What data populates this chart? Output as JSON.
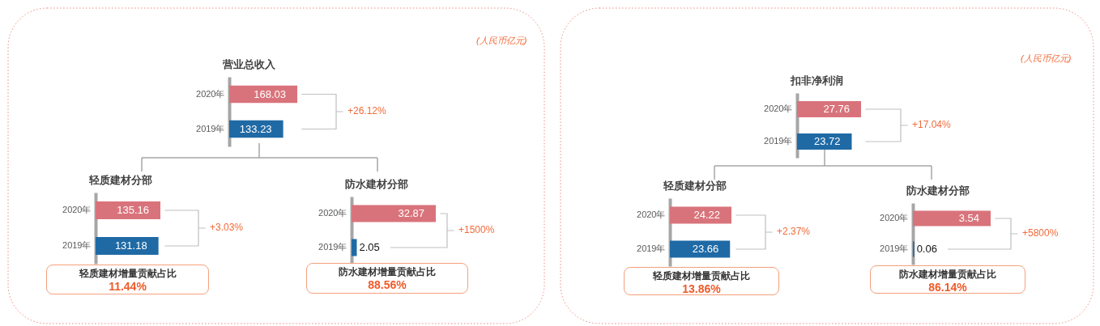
{
  "chart_data": [
    {
      "type": "bar",
      "orientation": "horizontal",
      "title": "营业总收入",
      "categories": [
        "2020年",
        "2019年"
      ],
      "values": [
        168.03,
        133.23
      ],
      "colors": [
        "#d9737b",
        "#1f6aa5"
      ],
      "data_labels": true,
      "annotations": [
        "(人民币亿元)",
        "+26.12%"
      ]
    },
    {
      "type": "bar",
      "orientation": "horizontal",
      "title": "轻质建材分部",
      "categories": [
        "2020年",
        "2019年"
      ],
      "values": [
        135.16,
        131.18
      ],
      "colors": [
        "#d9737b",
        "#1f6aa5"
      ],
      "data_labels": true,
      "annotations": [
        "+3.03%"
      ]
    },
    {
      "type": "bar",
      "orientation": "horizontal",
      "title": "防水建材分部",
      "categories": [
        "2020年",
        "2019年"
      ],
      "values": [
        32.87,
        2.05
      ],
      "colors": [
        "#d9737b",
        "#1f6aa5"
      ],
      "data_labels": true,
      "annotations": [
        "+1500%"
      ]
    },
    {
      "type": "other",
      "title": "轻质建材增量贡献占比",
      "annotations": [
        "11.44%"
      ]
    },
    {
      "type": "other",
      "title": "防水建材增量贡献占比",
      "annotations": [
        "88.56%"
      ]
    },
    {
      "type": "bar",
      "orientation": "horizontal",
      "title": "扣非净利润",
      "categories": [
        "2020年",
        "2019年"
      ],
      "values": [
        27.76,
        23.72
      ],
      "colors": [
        "#d9737b",
        "#1f6aa5"
      ],
      "data_labels": true,
      "annotations": [
        "(人民币亿元)",
        "+17.04%"
      ]
    },
    {
      "type": "bar",
      "orientation": "horizontal",
      "title": "轻质建材分部",
      "categories": [
        "2020年",
        "2019年"
      ],
      "values": [
        24.22,
        23.66
      ],
      "colors": [
        "#d9737b",
        "#1f6aa5"
      ],
      "data_labels": true,
      "annotations": [
        "+2.37%"
      ]
    },
    {
      "type": "bar",
      "orientation": "horizontal",
      "title": "防水建材分部",
      "categories": [
        "2020年",
        "2019年"
      ],
      "values": [
        3.54,
        0.06
      ],
      "colors": [
        "#d9737b",
        "#1f6aa5"
      ],
      "data_labels": true,
      "annotations": [
        "+5800%"
      ]
    },
    {
      "type": "other",
      "title": "轻质建材增量贡献占比",
      "annotations": [
        "13.86%"
      ]
    },
    {
      "type": "other",
      "title": "防水建材增量贡献占比",
      "annotations": [
        "86.14%"
      ]
    }
  ]
}
